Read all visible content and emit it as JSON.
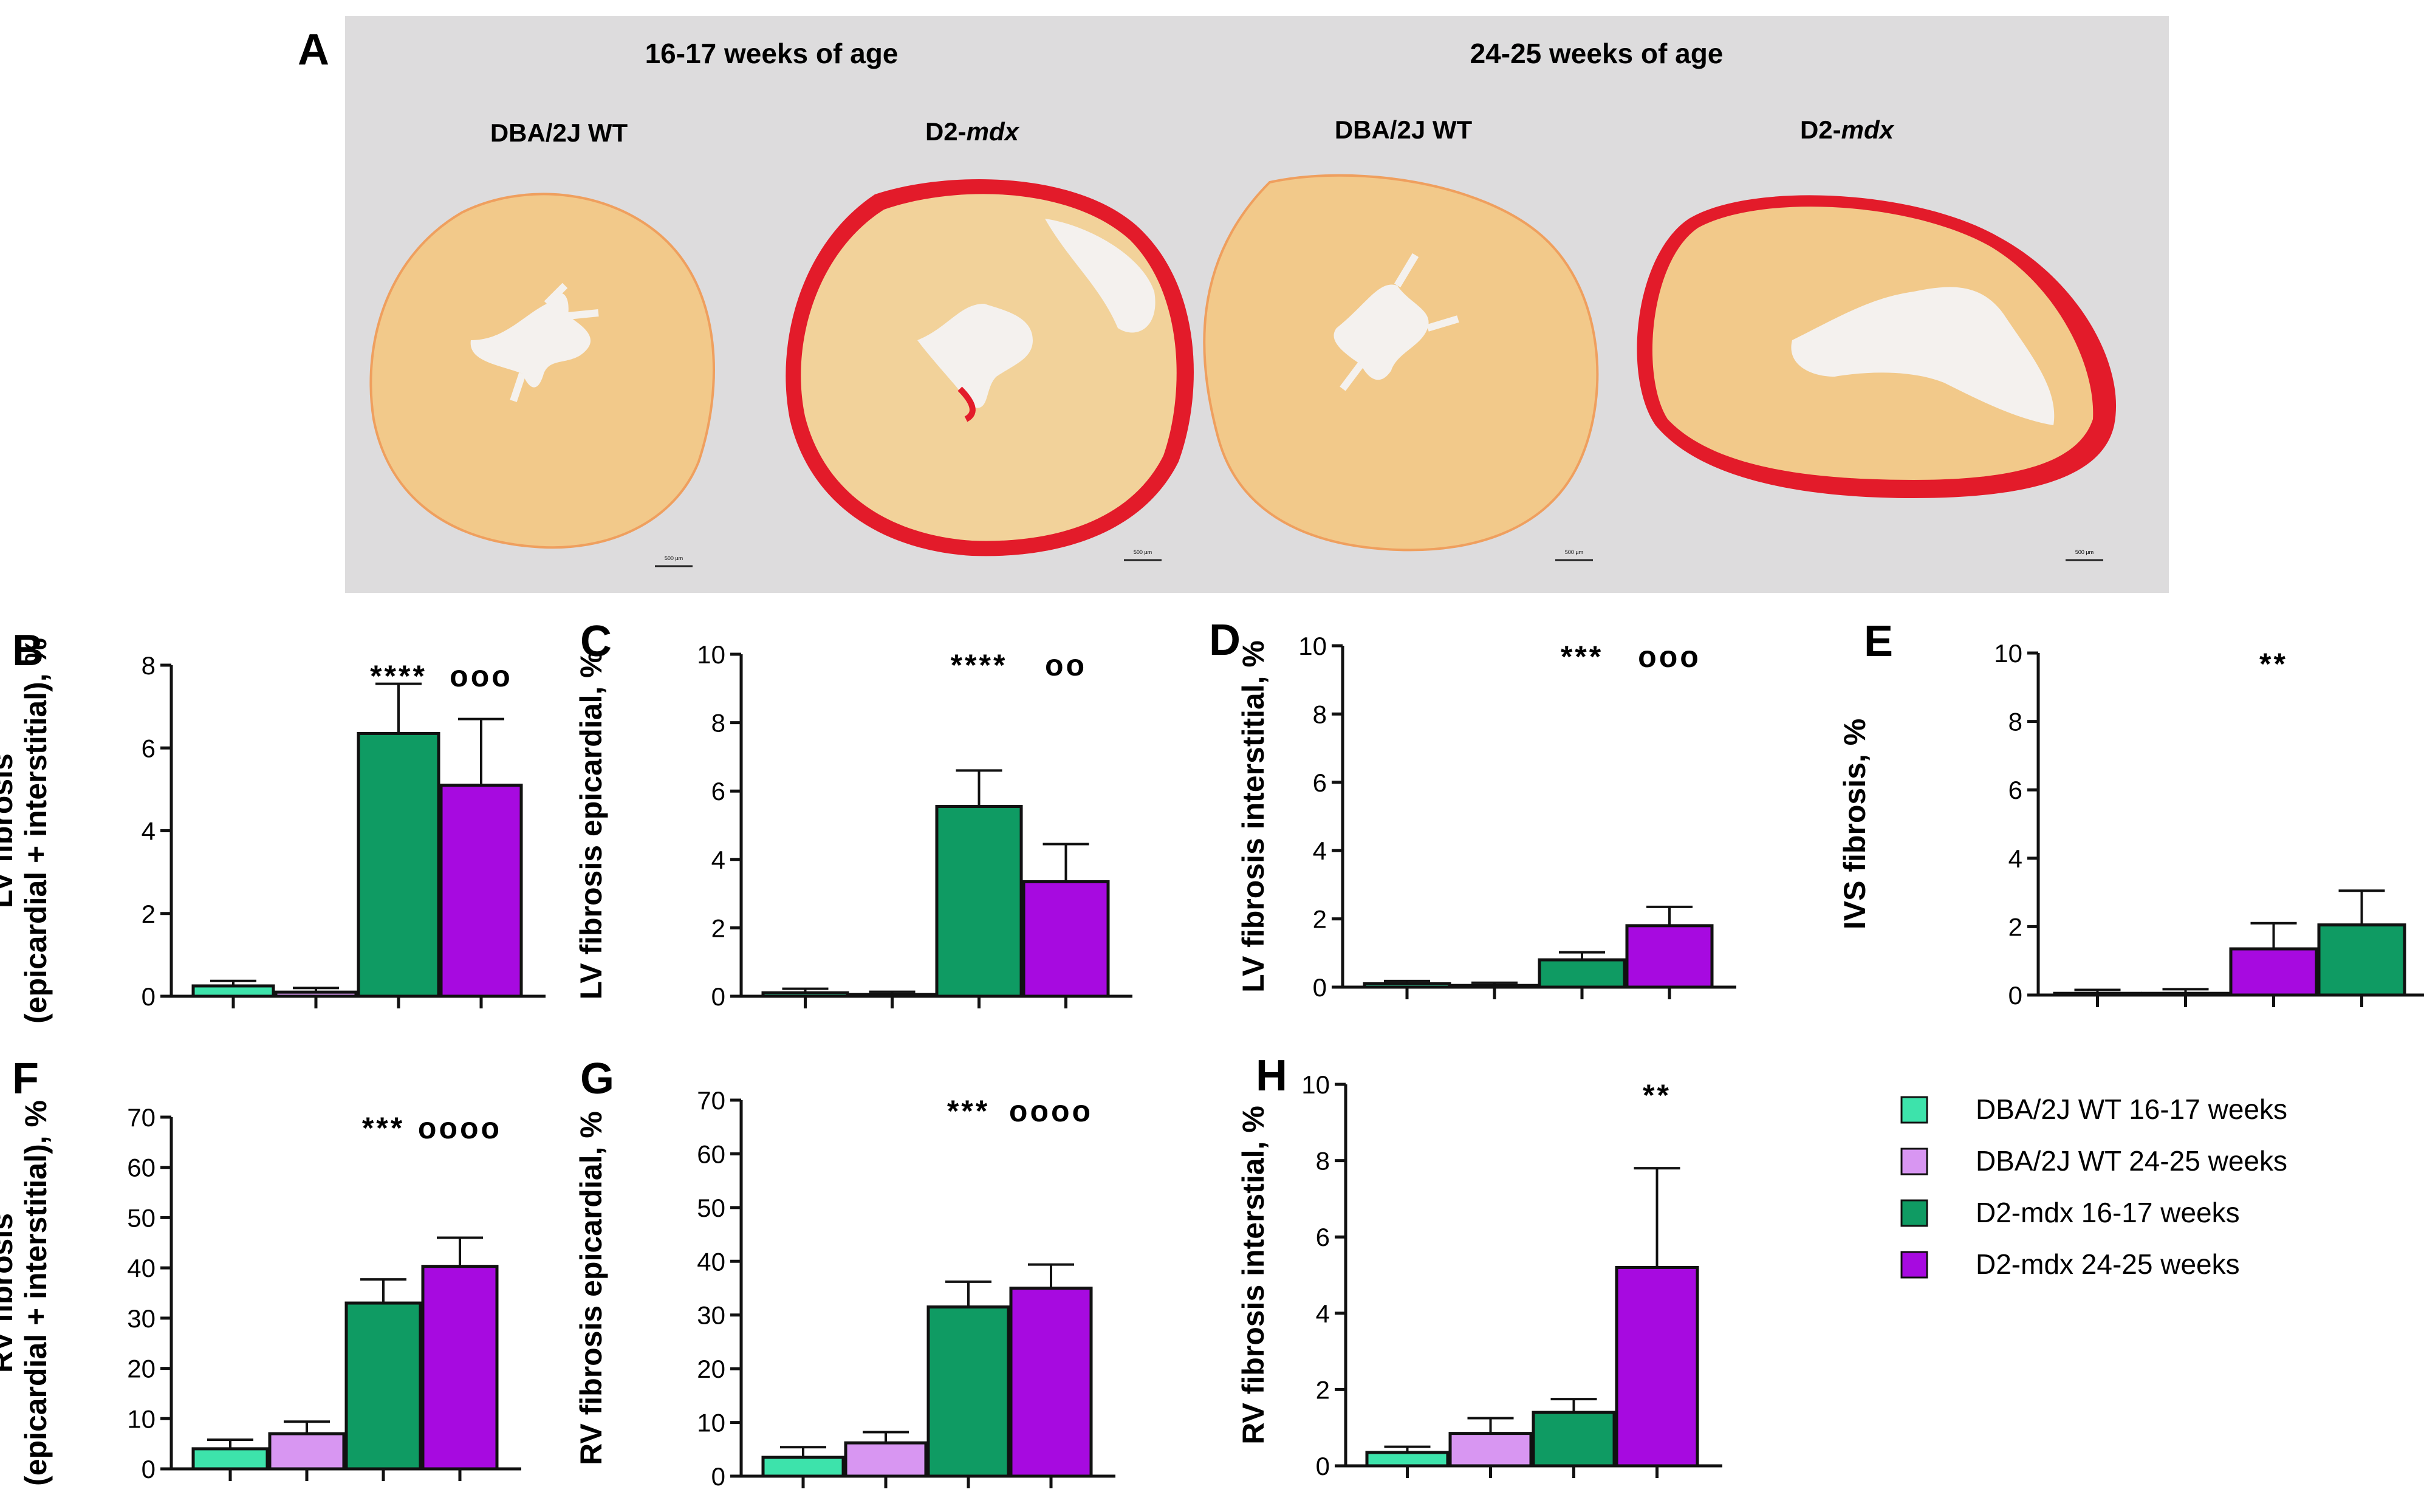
{
  "figure": {
    "panel_a": {
      "letter": "A",
      "group_titles": [
        "16-17 weeks of age",
        "24-25 weeks of age"
      ],
      "sample_labels": [
        {
          "prefix": "DBA/2J WT",
          "italic": ""
        },
        {
          "prefix": "D2-",
          "italic": "mdx"
        },
        {
          "prefix": "DBA/2J WT",
          "italic": ""
        },
        {
          "prefix": "D2-",
          "italic": "mdx"
        }
      ],
      "scale_bar_label": "500 µm",
      "image_icon": "heart-cross-section-image"
    },
    "colors": {
      "panel_bg": "#dddcdd",
      "tissue": "#f2c98a",
      "tissue_light": "#f7dfae",
      "fibrosis": "#e31b2a",
      "lumen": "#f4f1ee",
      "wt_16": "#3de3ab",
      "wt_24": "#d896f2",
      "mdx_16": "#0f9b63",
      "mdx_24": "#a70ae0"
    },
    "legend": [
      {
        "label": "DBA/2J WT 16-17 weeks",
        "color": "#3de3ab"
      },
      {
        "label": "DBA/2J WT 24-25 weeks",
        "color": "#d896f2"
      },
      {
        "label": "D2-mdx 16-17 weeks",
        "color": "#0f9b63"
      },
      {
        "label": "D2-mdx 24-25 weeks",
        "color": "#a70ae0"
      }
    ]
  },
  "chart_data": [
    {
      "letter": "B",
      "type": "bar",
      "ylabel": [
        "LV fibrosis",
        "(epicardial + interstitial), %"
      ],
      "ylim": [
        0,
        8
      ],
      "yticks": [
        0,
        2,
        4,
        6,
        8
      ],
      "values": [
        0.25,
        0.1,
        6.35,
        5.1
      ],
      "errors": [
        0.12,
        0.1,
        1.2,
        1.6
      ],
      "colors": [
        "#3de3ab",
        "#d896f2",
        "#0f9b63",
        "#a70ae0"
      ],
      "annotations": [
        {
          "bar": 2,
          "text": "****"
        },
        {
          "bar": 3,
          "text": "ooo"
        }
      ]
    },
    {
      "letter": "C",
      "type": "bar",
      "ylabel": [
        "LV fibrosis epicardial, %"
      ],
      "ylim": [
        0,
        10
      ],
      "yticks": [
        0,
        2,
        4,
        6,
        8,
        10
      ],
      "values": [
        0.1,
        0.05,
        5.55,
        3.35
      ],
      "errors": [
        0.12,
        0.08,
        1.05,
        1.1
      ],
      "colors": [
        "#3de3ab",
        "#d896f2",
        "#0f9b63",
        "#a70ae0"
      ],
      "annotations": [
        {
          "bar": 2,
          "text": "****"
        },
        {
          "bar": 3,
          "text": "oo"
        }
      ]
    },
    {
      "letter": "D",
      "type": "bar",
      "ylabel": [
        "LV fibrosis interstitial, %"
      ],
      "ylim": [
        0,
        10
      ],
      "yticks": [
        0,
        2,
        4,
        6,
        8,
        10
      ],
      "values": [
        0.1,
        0.05,
        0.8,
        1.8
      ],
      "errors": [
        0.08,
        0.08,
        0.22,
        0.55
      ],
      "colors": [
        "#3de3ab",
        "#d896f2",
        "#0f9b63",
        "#a70ae0"
      ],
      "annotations": [
        {
          "bar": 2,
          "text": "***"
        },
        {
          "bar": 3,
          "text": "ooo"
        }
      ]
    },
    {
      "letter": "E",
      "type": "bar",
      "ylabel": [
        "IVS fibrosis, %"
      ],
      "ylim": [
        0,
        10
      ],
      "yticks": [
        0,
        2,
        4,
        6,
        8,
        10
      ],
      "values": [
        0.05,
        0.05,
        1.35,
        2.05
      ],
      "errors": [
        0.1,
        0.12,
        0.75,
        1.0
      ],
      "colors": [
        "#3de3ab",
        "#d896f2",
        "#a70ae0",
        "#0f9b63"
      ],
      "annotations": [
        {
          "bar": 2,
          "text": "**"
        }
      ]
    },
    {
      "letter": "F",
      "type": "bar",
      "ylabel": [
        "RV fibrosis",
        "(epicardial + interstitial), %"
      ],
      "ylim": [
        0,
        70
      ],
      "yticks": [
        0,
        10,
        20,
        30,
        40,
        50,
        60,
        70
      ],
      "values": [
        4.0,
        7.0,
        33.0,
        40.3
      ],
      "errors": [
        1.8,
        2.4,
        4.7,
        5.7
      ],
      "colors": [
        "#3de3ab",
        "#d896f2",
        "#0f9b63",
        "#a70ae0"
      ],
      "annotations": [
        {
          "bar": 2,
          "text": "***"
        },
        {
          "bar": 3,
          "text": "oooo"
        }
      ]
    },
    {
      "letter": "G",
      "type": "bar",
      "ylabel": [
        "RV fibrosis epicardial, %"
      ],
      "ylim": [
        0,
        70
      ],
      "yticks": [
        0,
        10,
        20,
        30,
        40,
        50,
        60,
        70
      ],
      "values": [
        3.5,
        6.2,
        31.5,
        35.0
      ],
      "errors": [
        1.9,
        2.0,
        4.7,
        4.4
      ],
      "colors": [
        "#3de3ab",
        "#d896f2",
        "#0f9b63",
        "#a70ae0"
      ],
      "annotations": [
        {
          "bar": 2,
          "text": "***"
        },
        {
          "bar": 3,
          "text": "oooo"
        }
      ]
    },
    {
      "letter": "H",
      "type": "bar",
      "ylabel": [
        "RV fibrosis interstial, %"
      ],
      "ylim": [
        0,
        10
      ],
      "yticks": [
        0,
        2,
        4,
        6,
        8,
        10
      ],
      "values": [
        0.35,
        0.85,
        1.4,
        5.2
      ],
      "errors": [
        0.15,
        0.4,
        0.35,
        2.6
      ],
      "colors": [
        "#3de3ab",
        "#d896f2",
        "#0f9b63",
        "#a70ae0"
      ],
      "annotations": [
        {
          "bar": 3,
          "text": "**"
        }
      ]
    }
  ]
}
